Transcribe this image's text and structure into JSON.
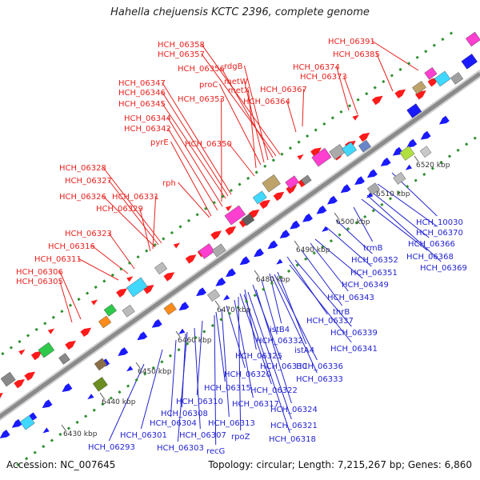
{
  "title": "Hahella chejuensis KCTC 2396, complete genome",
  "footer": {
    "accession": "Accession: NC_007645",
    "summary": "Topology: circular; Length: 7,215,267 bp; Genes: 6,860"
  },
  "colors": {
    "forward_label": "#e8231f",
    "reverse_label": "#2323d0",
    "backbone": "#8a8a8a",
    "tick_marks": "#2f8f2f",
    "forward_arrow": "#ff1a1a",
    "reverse_arrow": "#1a1aff"
  },
  "ruler_ticks": [
    "6430 kbp",
    "6440 kbp",
    "6450 kbp",
    "6460 kbp",
    "6470 kbp",
    "6480 kbp",
    "6490 kbp",
    "6500 kbp",
    "6510 kbp",
    "6520 kbp"
  ],
  "forward_labels": [
    "HCH_06358",
    "HCH_06357",
    "HCH_06356",
    "rdgB",
    "metW",
    "proC",
    "metX",
    "HCH_06347",
    "HCH_06346",
    "HCH_06345",
    "HCH_06353",
    "HCH_06367",
    "HCH_06364",
    "HCH_06344",
    "HCH_06342",
    "pyrE",
    "HCH_06350",
    "HCH_06328",
    "HCH_06327",
    "rph",
    "HCH_06326",
    "HCH_06331",
    "HCH_06329",
    "HCH_06323",
    "HCH_06316",
    "HCH_06311",
    "HCH_06306",
    "HCH_06305",
    "HCH_06391",
    "HCH_06385",
    "HCH_06374",
    "HCH_06373"
  ],
  "reverse_labels": [
    "HCH_10030",
    "HCH_06370",
    "HCH_06366",
    "HCH_06368",
    "HCH_06369",
    "trmB",
    "HCH_06352",
    "HCH_06351",
    "HCH_06349",
    "HCH_06343",
    "thrB",
    "HCH_06337",
    "HCH_06339",
    "istB4",
    "HCH_06341",
    "HCH_06332",
    "istA4",
    "HCH_06325",
    "HCH_06336",
    "HCH_06330",
    "HCH_06333",
    "HCH_06320",
    "HCH_06322",
    "HCH_06315",
    "HCH_06310",
    "HCH_06317",
    "HCH_06324",
    "HCH_06308",
    "HCH_06321",
    "HCH_06304",
    "HCH_06313",
    "HCH_06307",
    "HCH_06301",
    "rpoZ",
    "HCH_06318",
    "HCH_06293",
    "HCH_06303",
    "recG"
  ]
}
